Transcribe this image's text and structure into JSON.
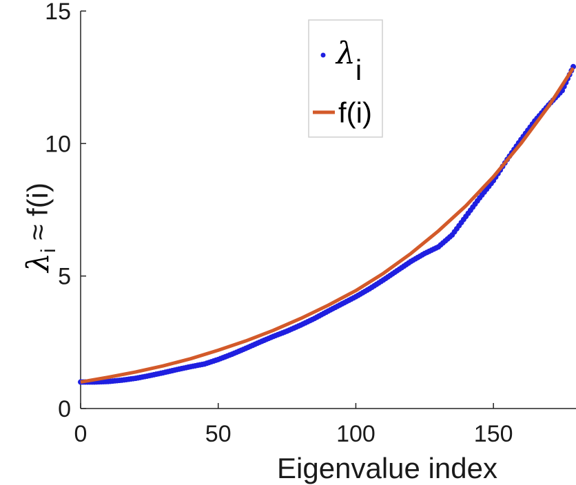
{
  "chart_data": {
    "type": "scatter",
    "xlabel": "Eigenvalue index",
    "ylabel": {
      "lambda": "λ",
      "sub": "i",
      "rest": " ≈ f(i)"
    },
    "xlim": [
      0,
      180
    ],
    "ylim": [
      0,
      15
    ],
    "xticks": [
      0,
      50,
      100,
      150
    ],
    "yticks": [
      0,
      5,
      10,
      15
    ],
    "grid": false,
    "legend_position": "top-center",
    "legend": {
      "symbol_label_lambda": "λ",
      "symbol_label_sub": "i",
      "line_label": "f(i)"
    },
    "series": [
      {
        "kind": "points",
        "color": "#1f1fe0",
        "x": [
          0,
          5,
          10,
          15,
          20,
          25,
          30,
          35,
          40,
          45,
          50,
          55,
          60,
          65,
          70,
          75,
          80,
          85,
          90,
          95,
          100,
          105,
          110,
          115,
          120,
          125,
          130,
          135,
          140,
          145,
          150,
          155,
          160,
          165,
          170,
          175,
          179
        ],
        "y": [
          1.0,
          1.0,
          1.02,
          1.07,
          1.14,
          1.24,
          1.35,
          1.47,
          1.58,
          1.68,
          1.85,
          2.05,
          2.27,
          2.5,
          2.72,
          2.92,
          3.15,
          3.4,
          3.68,
          3.95,
          4.22,
          4.52,
          4.85,
          5.2,
          5.55,
          5.85,
          6.1,
          6.55,
          7.25,
          7.95,
          8.6,
          9.4,
          10.15,
          10.85,
          11.45,
          12.0,
          12.9
        ]
      },
      {
        "kind": "line",
        "color": "#d35a2a",
        "x": [
          0,
          10,
          20,
          30,
          40,
          50,
          60,
          70,
          80,
          90,
          100,
          110,
          120,
          130,
          140,
          150,
          160,
          170,
          179
        ],
        "y": [
          1.0,
          1.18,
          1.38,
          1.61,
          1.88,
          2.2,
          2.55,
          2.95,
          3.4,
          3.9,
          4.45,
          5.1,
          5.85,
          6.7,
          7.65,
          8.75,
          10.0,
          11.4,
          12.85
        ]
      }
    ]
  }
}
